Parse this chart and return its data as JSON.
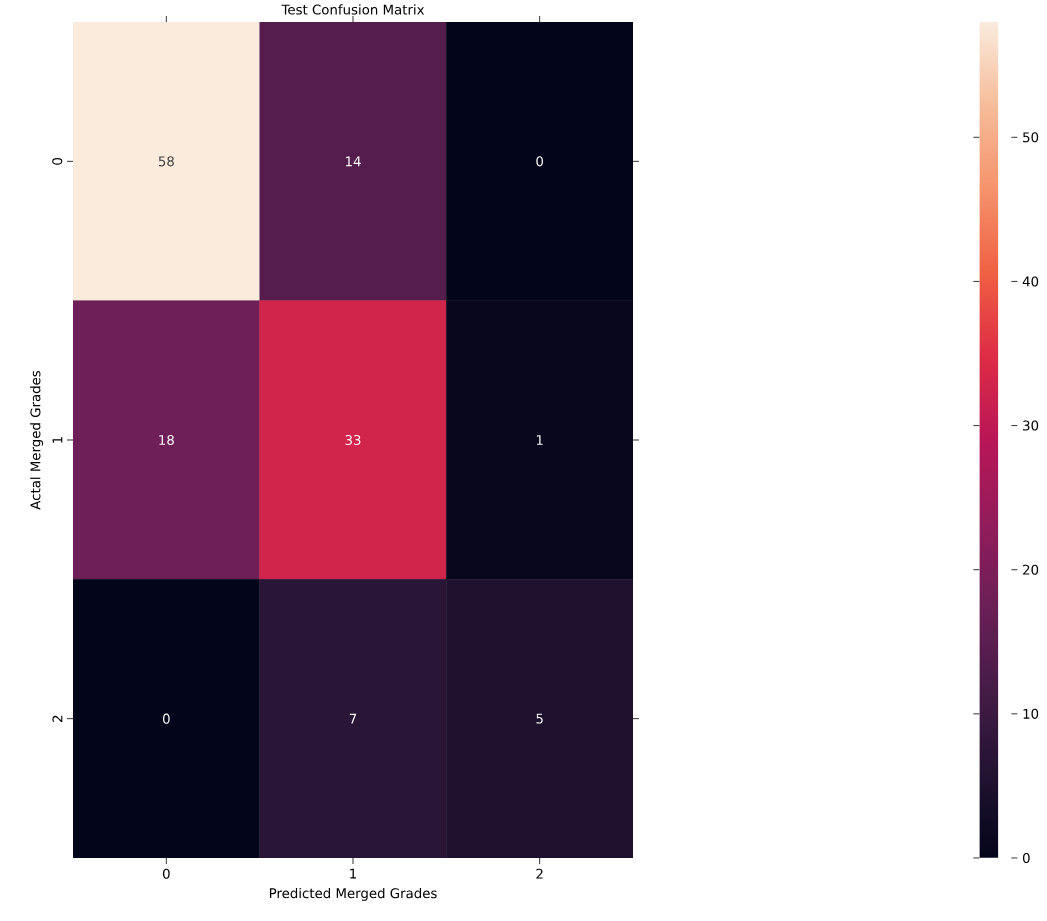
{
  "chart_data": {
    "type": "heatmap",
    "title": "Test Confusion Matrix",
    "xlabel": "Predicted Merged Grades",
    "ylabel": "Actal Merged Grades",
    "categories": [
      "0",
      "1",
      "2"
    ],
    "y_categories": [
      "0",
      "1",
      "2"
    ],
    "cells": [
      [
        58,
        14,
        0
      ],
      [
        18,
        33,
        1
      ],
      [
        0,
        7,
        5
      ]
    ],
    "clim": [
      0,
      58
    ],
    "cticks": [
      0,
      10,
      20,
      30,
      40,
      50
    ],
    "data_labels": true
  }
}
